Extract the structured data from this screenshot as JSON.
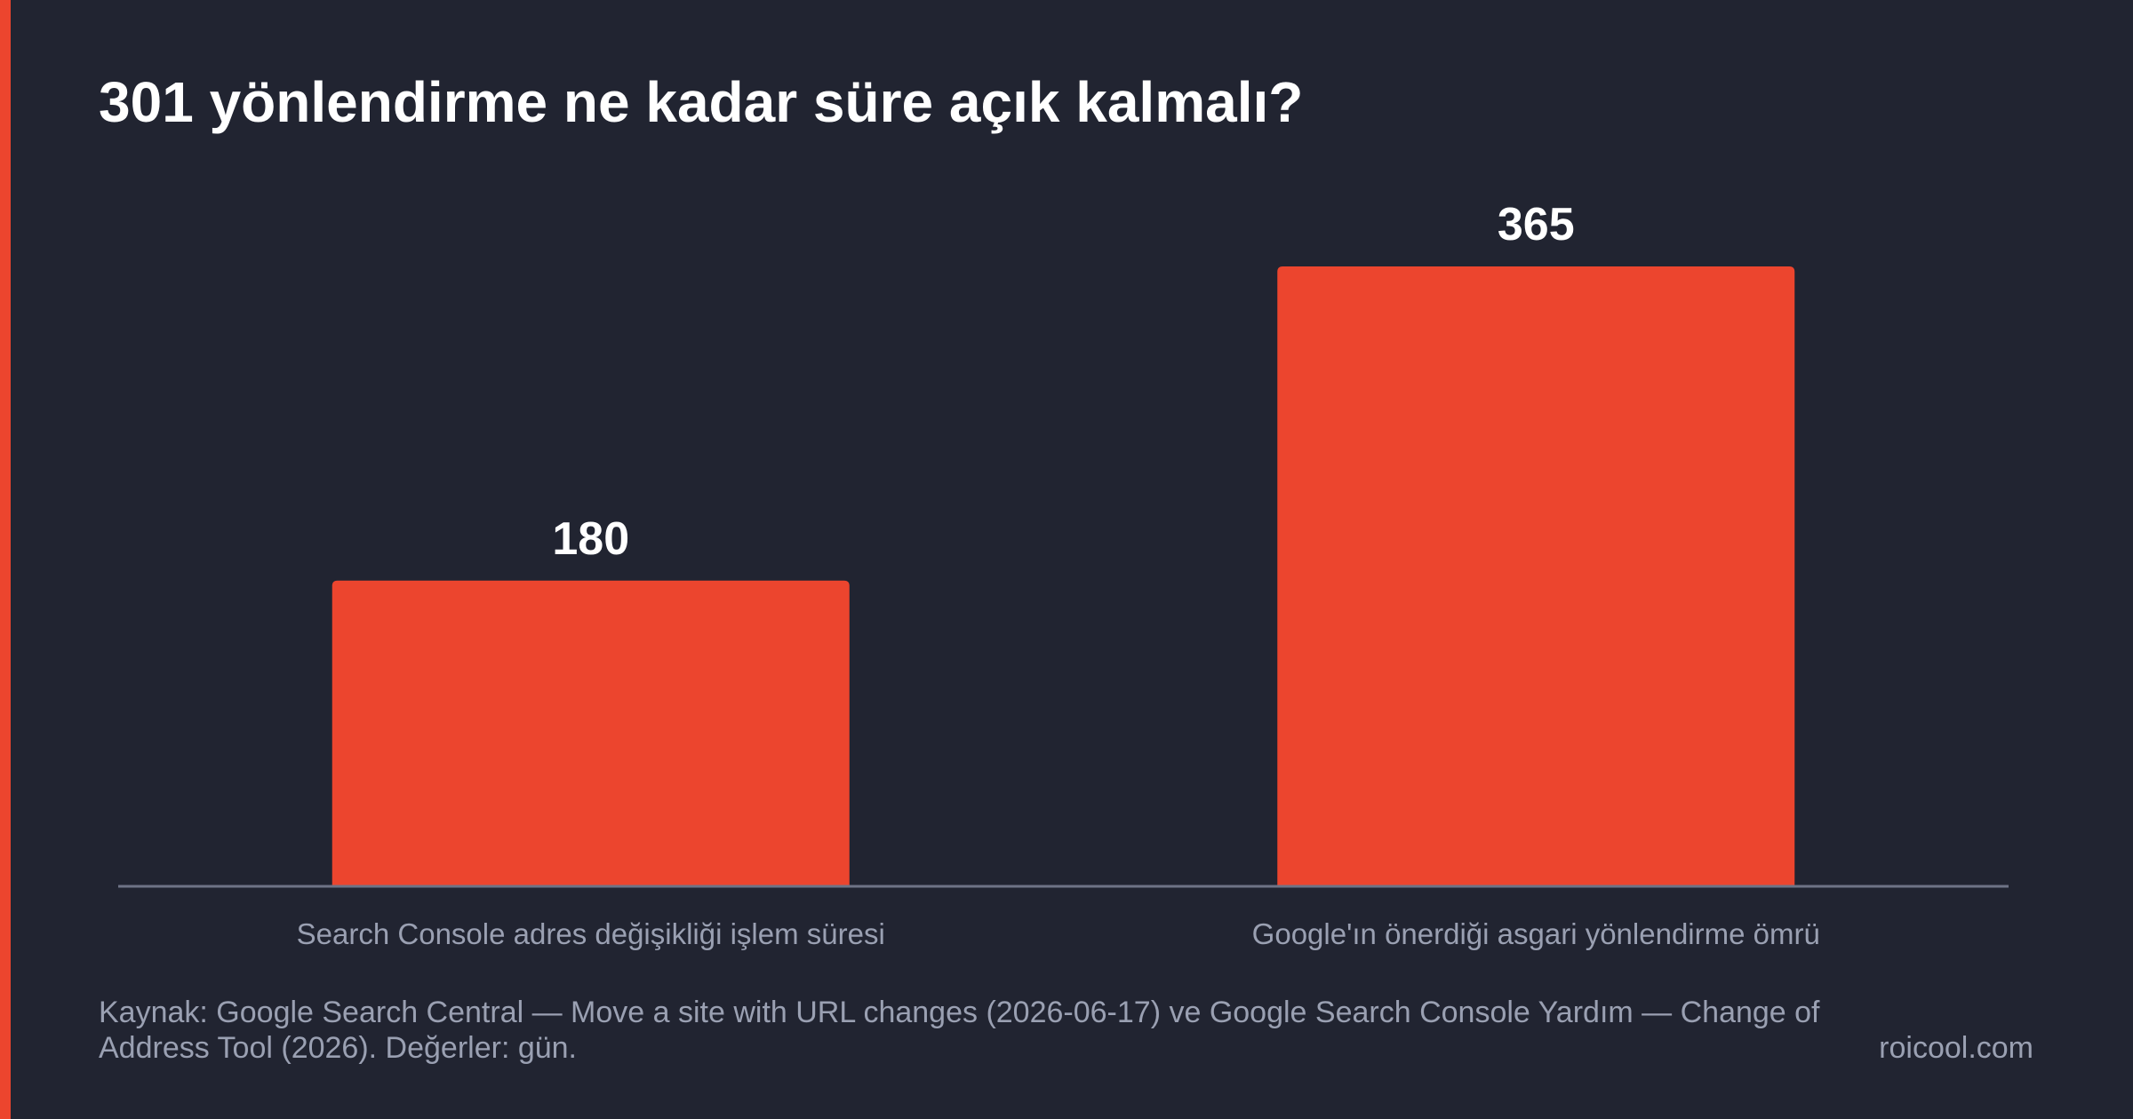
{
  "title": "301 yönlendirme ne kadar süre açık kalmalı?",
  "chart_data": {
    "type": "bar",
    "title": "301 yönlendirme ne kadar süre açık kalmalı?",
    "categories": [
      "Search Console adres değişikliği işlem süresi",
      "Google'ın önerdiği asgari yönlendirme ömrü"
    ],
    "values": [
      180,
      365
    ],
    "data_labels": [
      "180",
      "365"
    ],
    "ylim": [
      0,
      365
    ],
    "grid": false,
    "legend": "none",
    "bar_color": "#ec452e"
  },
  "footer": {
    "source": "Kaynak: Google Search Central — Move a site with URL changes (2026-06-17) ve Google Search Console Yardım — Change of Address Tool (2026). Değerler: gün.",
    "brand": "roicool.com"
  },
  "colors": {
    "background": "#212431",
    "accent": "#ec452e",
    "text": "#ffffff",
    "muted_text": "#9aa0b2",
    "axis": "#6e7386"
  }
}
